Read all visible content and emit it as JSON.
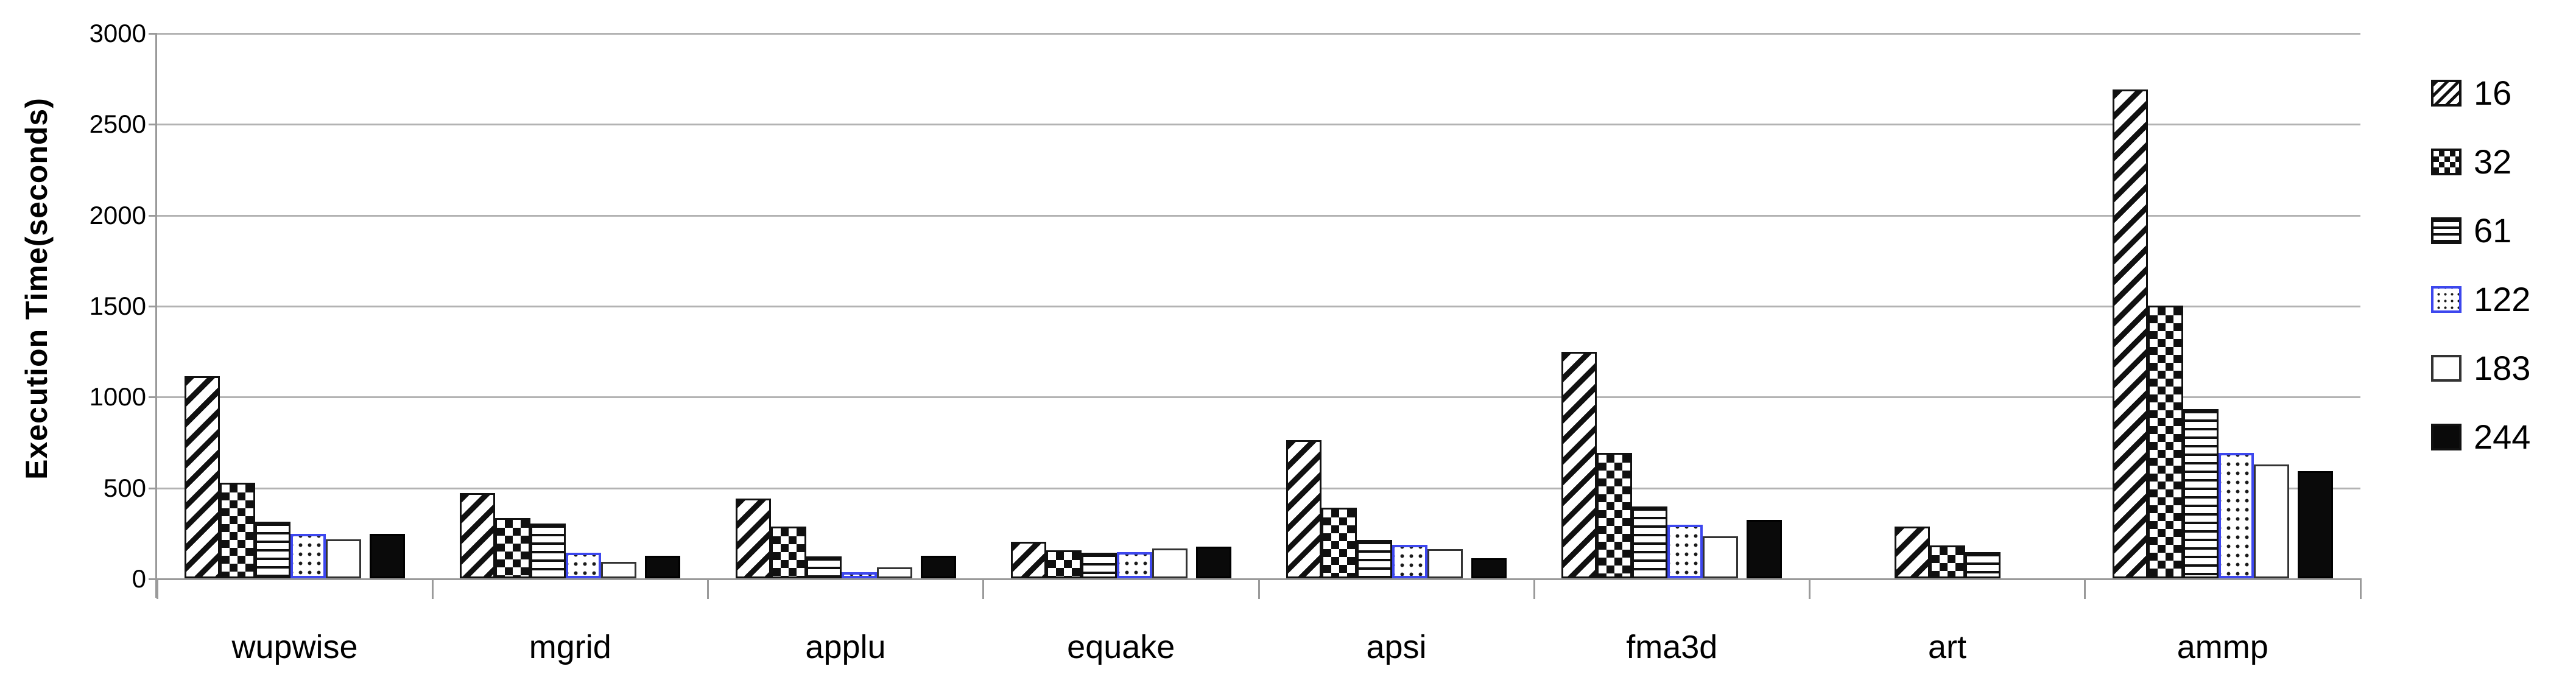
{
  "chart_data": {
    "type": "bar",
    "title": "",
    "xlabel": "",
    "ylabel": "Execution Time(seconds)",
    "ylim": [
      0,
      3000
    ],
    "ytick_interval": 500,
    "yticks": [
      0,
      500,
      1000,
      1500,
      2000,
      2500,
      3000
    ],
    "grid": "horizontal",
    "legend_position": "right",
    "categories": [
      "wupwise",
      "mgrid",
      "applu",
      "equake",
      "apsi",
      "fma3d",
      "art",
      "ammp"
    ],
    "series": [
      {
        "name": "16",
        "pattern": "diagonal-stripes",
        "values": [
          1110,
          470,
          440,
          200,
          760,
          1245,
          285,
          2690
        ]
      },
      {
        "name": "32",
        "pattern": "checkerboard",
        "values": [
          525,
          330,
          285,
          155,
          390,
          690,
          180,
          1500
        ]
      },
      {
        "name": "61",
        "pattern": "horizontal-lines",
        "values": [
          310,
          300,
          120,
          140,
          210,
          395,
          145,
          930
        ]
      },
      {
        "name": "122",
        "pattern": "dotted-blue-outline",
        "values": [
          245,
          140,
          35,
          145,
          185,
          295,
          0,
          690
        ]
      },
      {
        "name": "183",
        "pattern": "white-outline",
        "values": [
          215,
          90,
          60,
          165,
          160,
          230,
          0,
          625
        ]
      },
      {
        "name": "244",
        "pattern": "solid-black",
        "values": [
          245,
          125,
          125,
          175,
          110,
          320,
          0,
          590
        ]
      }
    ]
  },
  "colors": {
    "background": "#ffffff",
    "text": "#000000",
    "gridline": "#b3b3b3",
    "axis": "#9a9a9a",
    "series_122_outline": "#3d47ee",
    "bar_fill_black": "#0a0a0a"
  },
  "legend": {
    "items": [
      {
        "label": "16"
      },
      {
        "label": "32"
      },
      {
        "label": "61"
      },
      {
        "label": "122"
      },
      {
        "label": "183"
      },
      {
        "label": "244"
      }
    ]
  }
}
